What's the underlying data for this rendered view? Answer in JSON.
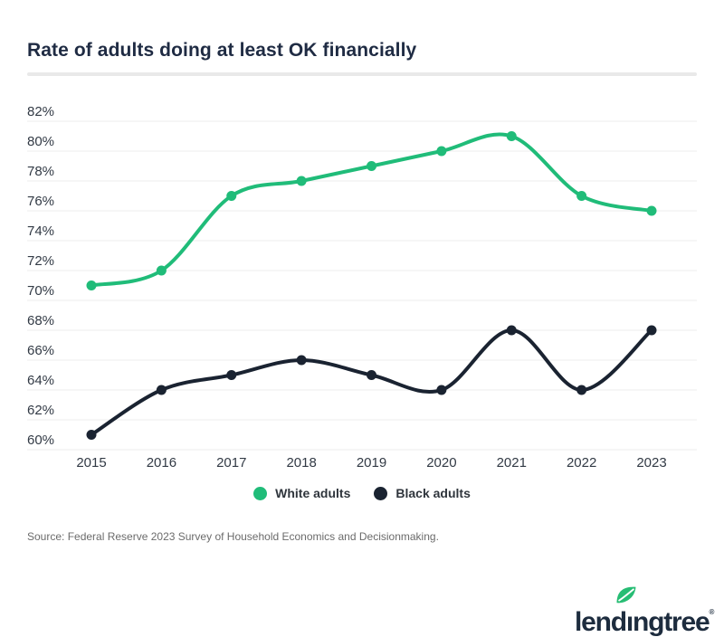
{
  "header": {
    "title": "Rate of adults doing at least OK financially"
  },
  "chart_data": {
    "type": "line",
    "title": "Rate of adults doing at least OK financially",
    "x": [
      "2015",
      "2016",
      "2017",
      "2018",
      "2019",
      "2020",
      "2021",
      "2022",
      "2023"
    ],
    "series": [
      {
        "name": "White adults",
        "color": "#20bc79",
        "values": [
          71,
          72,
          77,
          78,
          79,
          80,
          81,
          77,
          76
        ]
      },
      {
        "name": "Black adults",
        "color": "#1a2331",
        "values": [
          61,
          64,
          65,
          66,
          65,
          64,
          68,
          64,
          68
        ]
      }
    ],
    "yticks": [
      "82%",
      "80%",
      "78%",
      "76%",
      "74%",
      "72%",
      "70%",
      "68%",
      "66%",
      "64%",
      "62%",
      "60%"
    ],
    "ylim": [
      60,
      82
    ],
    "xlabel": "",
    "ylabel": "",
    "grid": true,
    "legend_position": "bottom"
  },
  "footer": {
    "source": "Source: Federal Reserve 2023 Survey of Household Economics and Decisionmaking.",
    "logo": {
      "text": "lendingtree",
      "reg": "®"
    }
  },
  "colors": {
    "accent_green": "#20bc79",
    "dark_navy": "#1a2331",
    "grid_line": "#ececec",
    "axis_label": "#323a45",
    "title_text": "#1f2b43",
    "divider": "#e9e9e9",
    "legend_text": "#2f353c",
    "source_text": "#6b6b6b",
    "logo_navy": "#1d2c3e",
    "leaf_green": "#27bd74"
  }
}
